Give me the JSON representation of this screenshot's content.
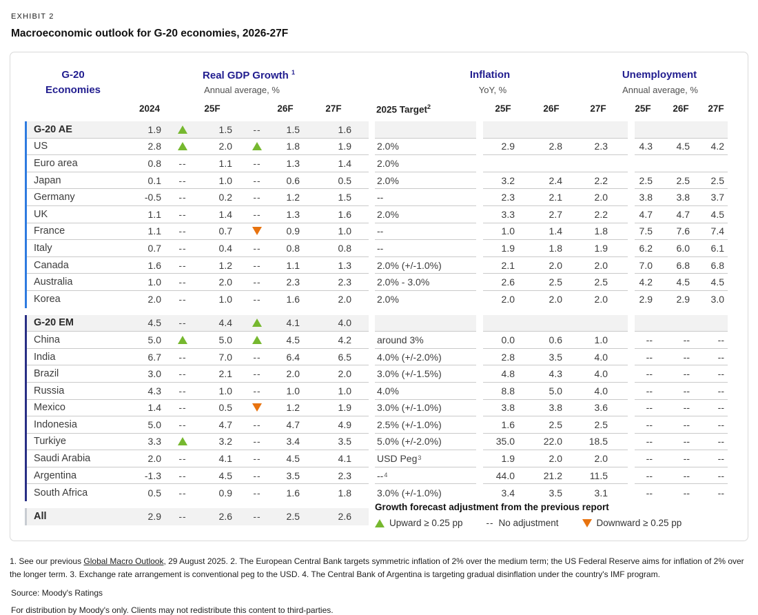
{
  "exhibit": {
    "label": "EXHIBIT 2",
    "title": "Macroeconomic outlook for G-20 economies, 2026-27F"
  },
  "colors": {
    "navy": "#211D8F",
    "green": "#76B82F",
    "orange": "#E8730F",
    "bar_ae": "#2E7BE0",
    "bar_em": "#292F85",
    "bar_all": "#C8CCD2"
  },
  "table": {
    "col_groups": {
      "economies": {
        "title_line1": "G-20",
        "title_line2": "Economies"
      },
      "gdp": {
        "title": "Real GDP Growth",
        "title_sup": "1",
        "subtitle": "Annual average, %",
        "cols": [
          "2024",
          "25F",
          "26F",
          "27F"
        ]
      },
      "target_col": {
        "header": "2025 Target",
        "header_sup": "2"
      },
      "inflation": {
        "title": "Inflation",
        "subtitle": "YoY, %",
        "cols": [
          "25F",
          "26F",
          "27F"
        ]
      },
      "unemployment": {
        "title": "Unemployment",
        "subtitle": "Annual average, %",
        "cols": [
          "25F",
          "26F",
          "27F"
        ]
      }
    },
    "sections": [
      {
        "id": "ae",
        "rows": [
          {
            "kind": "group",
            "name": "G-20 AE",
            "g2024": "1.9",
            "a25": "up",
            "g25": "1.5",
            "a26": "--",
            "g26": "1.5",
            "g27": "1.6",
            "target": "",
            "tsup": "",
            "i25": "",
            "i26": "",
            "i27": "",
            "u25": "",
            "u26": "",
            "u27": ""
          },
          {
            "kind": "normal",
            "name": "US",
            "g2024": "2.8",
            "a25": "up",
            "g25": "2.0",
            "a26": "up",
            "g26": "1.8",
            "g27": "1.9",
            "target": "2.0%",
            "tsup": "",
            "i25": "2.9",
            "i26": "2.8",
            "i27": "2.3",
            "u25": "4.3",
            "u26": "4.5",
            "u27": "4.2"
          },
          {
            "kind": "normal",
            "name": "Euro area",
            "g2024": "0.8",
            "a25": "--",
            "g25": "1.1",
            "a26": "--",
            "g26": "1.3",
            "g27": "1.4",
            "target": "2.0%",
            "tsup": "",
            "i25": "",
            "i26": "",
            "i27": "",
            "u25": "",
            "u26": "",
            "u27": ""
          },
          {
            "kind": "normal",
            "name": "Japan",
            "g2024": "0.1",
            "a25": "--",
            "g25": "1.0",
            "a26": "--",
            "g26": "0.6",
            "g27": "0.5",
            "target": "2.0%",
            "tsup": "",
            "i25": "3.2",
            "i26": "2.4",
            "i27": "2.2",
            "u25": "2.5",
            "u26": "2.5",
            "u27": "2.5"
          },
          {
            "kind": "normal",
            "name": "Germany",
            "g2024": "-0.5",
            "a25": "--",
            "g25": "0.2",
            "a26": "--",
            "g26": "1.2",
            "g27": "1.5",
            "target": "--",
            "tsup": "",
            "i25": "2.3",
            "i26": "2.1",
            "i27": "2.0",
            "u25": "3.8",
            "u26": "3.8",
            "u27": "3.7"
          },
          {
            "kind": "normal",
            "name": "UK",
            "g2024": "1.1",
            "a25": "--",
            "g25": "1.4",
            "a26": "--",
            "g26": "1.3",
            "g27": "1.6",
            "target": "2.0%",
            "tsup": "",
            "i25": "3.3",
            "i26": "2.7",
            "i27": "2.2",
            "u25": "4.7",
            "u26": "4.7",
            "u27": "4.5"
          },
          {
            "kind": "normal",
            "name": "France",
            "g2024": "1.1",
            "a25": "--",
            "g25": "0.7",
            "a26": "down",
            "g26": "0.9",
            "g27": "1.0",
            "target": "--",
            "tsup": "",
            "i25": "1.0",
            "i26": "1.4",
            "i27": "1.8",
            "u25": "7.5",
            "u26": "7.6",
            "u27": "7.4"
          },
          {
            "kind": "normal",
            "name": "Italy",
            "g2024": "0.7",
            "a25": "--",
            "g25": "0.4",
            "a26": "--",
            "g26": "0.8",
            "g27": "0.8",
            "target": "--",
            "tsup": "",
            "i25": "1.9",
            "i26": "1.8",
            "i27": "1.9",
            "u25": "6.2",
            "u26": "6.0",
            "u27": "6.1"
          },
          {
            "kind": "normal",
            "name": "Canada",
            "g2024": "1.6",
            "a25": "--",
            "g25": "1.2",
            "a26": "--",
            "g26": "1.1",
            "g27": "1.3",
            "target": "2.0% (+/-1.0%)",
            "tsup": "",
            "i25": "2.1",
            "i26": "2.0",
            "i27": "2.0",
            "u25": "7.0",
            "u26": "6.8",
            "u27": "6.8"
          },
          {
            "kind": "normal",
            "name": "Australia",
            "g2024": "1.0",
            "a25": "--",
            "g25": "2.0",
            "a26": "--",
            "g26": "2.3",
            "g27": "2.3",
            "target": "2.0% - 3.0%",
            "tsup": "",
            "i25": "2.6",
            "i26": "2.5",
            "i27": "2.5",
            "u25": "4.2",
            "u26": "4.5",
            "u27": "4.5"
          },
          {
            "kind": "normal",
            "name": "Korea",
            "g2024": "2.0",
            "a25": "--",
            "g25": "1.0",
            "a26": "--",
            "g26": "1.6",
            "g27": "2.0",
            "target": "2.0%",
            "tsup": "",
            "i25": "2.0",
            "i26": "2.0",
            "i27": "2.0",
            "u25": "2.9",
            "u26": "2.9",
            "u27": "3.0"
          }
        ]
      },
      {
        "id": "em",
        "rows": [
          {
            "kind": "group",
            "name": "G-20 EM",
            "g2024": "4.5",
            "a25": "--",
            "g25": "4.4",
            "a26": "up",
            "g26": "4.1",
            "g27": "4.0",
            "target": "",
            "tsup": "",
            "i25": "",
            "i26": "",
            "i27": "",
            "u25": "",
            "u26": "",
            "u27": ""
          },
          {
            "kind": "normal",
            "name": "China",
            "g2024": "5.0",
            "a25": "up",
            "g25": "5.0",
            "a26": "up",
            "g26": "4.5",
            "g27": "4.2",
            "target": "around 3%",
            "tsup": "",
            "i25": "0.0",
            "i26": "0.6",
            "i27": "1.0",
            "u25": "--",
            "u26": "--",
            "u27": "--"
          },
          {
            "kind": "normal",
            "name": "India",
            "g2024": "6.7",
            "a25": "--",
            "g25": "7.0",
            "a26": "--",
            "g26": "6.4",
            "g27": "6.5",
            "target": "4.0% (+/-2.0%)",
            "tsup": "",
            "i25": "2.8",
            "i26": "3.5",
            "i27": "4.0",
            "u25": "--",
            "u26": "--",
            "u27": "--"
          },
          {
            "kind": "normal",
            "name": "Brazil",
            "g2024": "3.0",
            "a25": "--",
            "g25": "2.1",
            "a26": "--",
            "g26": "2.0",
            "g27": "2.0",
            "target": "3.0% (+/-1.5%)",
            "tsup": "",
            "i25": "4.8",
            "i26": "4.3",
            "i27": "4.0",
            "u25": "--",
            "u26": "--",
            "u27": "--"
          },
          {
            "kind": "normal",
            "name": "Russia",
            "g2024": "4.3",
            "a25": "--",
            "g25": "1.0",
            "a26": "--",
            "g26": "1.0",
            "g27": "1.0",
            "target": "4.0%",
            "tsup": "",
            "i25": "8.8",
            "i26": "5.0",
            "i27": "4.0",
            "u25": "--",
            "u26": "--",
            "u27": "--"
          },
          {
            "kind": "normal",
            "name": "Mexico",
            "g2024": "1.4",
            "a25": "--",
            "g25": "0.5",
            "a26": "down",
            "g26": "1.2",
            "g27": "1.9",
            "target": "3.0% (+/-1.0%)",
            "tsup": "",
            "i25": "3.8",
            "i26": "3.8",
            "i27": "3.6",
            "u25": "--",
            "u26": "--",
            "u27": "--"
          },
          {
            "kind": "normal",
            "name": "Indonesia",
            "g2024": "5.0",
            "a25": "--",
            "g25": "4.7",
            "a26": "--",
            "g26": "4.7",
            "g27": "4.9",
            "target": "2.5% (+/-1.0%)",
            "tsup": "",
            "i25": "1.6",
            "i26": "2.5",
            "i27": "2.5",
            "u25": "--",
            "u26": "--",
            "u27": "--"
          },
          {
            "kind": "normal",
            "name": "Turkiye",
            "g2024": "3.3",
            "a25": "up",
            "g25": "3.2",
            "a26": "--",
            "g26": "3.4",
            "g27": "3.5",
            "target": "5.0% (+/-2.0%)",
            "tsup": "",
            "i25": "35.0",
            "i26": "22.0",
            "i27": "18.5",
            "u25": "--",
            "u26": "--",
            "u27": "--"
          },
          {
            "kind": "normal",
            "name": "Saudi Arabia",
            "g2024": "2.0",
            "a25": "--",
            "g25": "4.1",
            "a26": "--",
            "g26": "4.5",
            "g27": "4.1",
            "target": "USD Peg",
            "tsup": "3",
            "i25": "1.9",
            "i26": "2.0",
            "i27": "2.0",
            "u25": "--",
            "u26": "--",
            "u27": "--"
          },
          {
            "kind": "normal",
            "name": "Argentina",
            "g2024": "-1.3",
            "a25": "--",
            "g25": "4.5",
            "a26": "--",
            "g26": "3.5",
            "g27": "2.3",
            "target": "--",
            "tsup": "4",
            "i25": "44.0",
            "i26": "21.2",
            "i27": "11.5",
            "u25": "--",
            "u26": "--",
            "u27": "--"
          },
          {
            "kind": "normal",
            "name": "South Africa",
            "g2024": "0.5",
            "a25": "--",
            "g25": "0.9",
            "a26": "--",
            "g26": "1.6",
            "g27": "1.8",
            "target": "3.0% (+/-1.0%)",
            "tsup": "",
            "i25": "3.4",
            "i26": "3.5",
            "i27": "3.1",
            "u25": "--",
            "u26": "--",
            "u27": "--"
          }
        ]
      },
      {
        "id": "all",
        "rows": [
          {
            "kind": "total",
            "name": "All",
            "g2024": "2.9",
            "a25": "--",
            "g25": "2.6",
            "a26": "--",
            "g26": "2.5",
            "g27": "2.6",
            "target": "",
            "tsup": "",
            "i25": "",
            "i26": "",
            "i27": "",
            "u25": "",
            "u26": "",
            "u27": ""
          }
        ]
      }
    ]
  },
  "legend": {
    "title": "Growth forecast adjustment from the previous report",
    "upward_label": "Upward ≥ 0.25 pp",
    "no_adjustment_symbol": "--",
    "no_adjustment_label": "No adjustment",
    "downward_label": "Downward ≥ 0.25 pp"
  },
  "footnotes": {
    "note_prefix": "1. See our previous ",
    "note_link": "Global Macro Outlook",
    "note_suffix": ", 29 August 2025. 2. The European Central Bank targets symmetric inflation of 2% over the medium term; the US Federal Reserve aims for inflation of 2% over the longer term. 3. Exchange rate arrangement is conventional peg to the USD. 4. The Central Bank of Argentina is targeting gradual disinflation under the country's IMF program.",
    "source": "Source: Moody's Ratings",
    "distribution": "For distribution by Moody's only. Clients may not redistribute this content to third-parties."
  }
}
